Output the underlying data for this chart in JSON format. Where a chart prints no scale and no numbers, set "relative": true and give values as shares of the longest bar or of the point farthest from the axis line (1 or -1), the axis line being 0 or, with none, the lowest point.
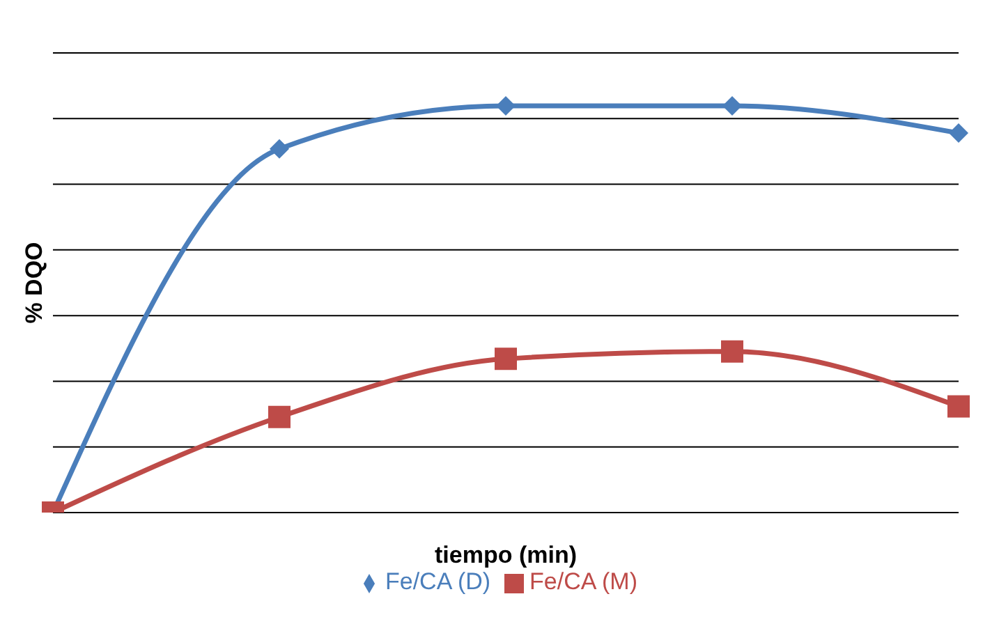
{
  "chart_data": {
    "type": "line",
    "relative": true,
    "ylabel": "% DQO",
    "xlabel": "tiempo (min)",
    "categories": [
      null,
      null,
      null,
      null,
      null
    ],
    "series": [
      {
        "name": "Fe/CA (D)",
        "color": "#4a7ebb",
        "marker": "diamond",
        "values": [
          0,
          0.894,
          1,
          1,
          0.933
        ]
      },
      {
        "name": "Fe/CA (M)",
        "color": "#be4b48",
        "marker": "square",
        "values": [
          0,
          0.235,
          0.378,
          0.396,
          0.261
        ]
      }
    ],
    "grid": "y",
    "legend": "bottom"
  }
}
